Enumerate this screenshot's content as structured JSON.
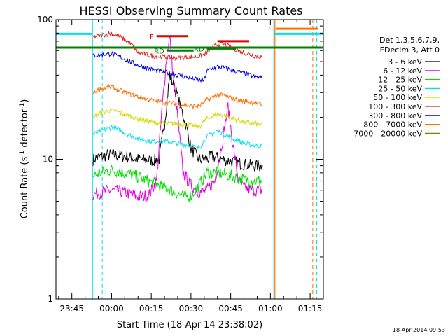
{
  "chart_data": {
    "type": "line",
    "title": "HESSI Observing Summary Count Rates",
    "xlabel": "Start Time (18-Apr-14 23:38:02)",
    "ylabel_main": "Count Rate (s",
    "ylabel_sup1": "-1",
    "ylabel_mid": " detector",
    "ylabel_sup2": "-1",
    "ylabel_end": ")",
    "yscale": "log",
    "ylim": [
      1,
      100
    ],
    "xlim_minutes": [
      -21,
      80
    ],
    "x_ticks": [
      {
        "m": -15,
        "label": "23:45"
      },
      {
        "m": 0,
        "label": "00:00"
      },
      {
        "m": 15,
        "label": "00:15"
      },
      {
        "m": 30,
        "label": "00:30"
      },
      {
        "m": 45,
        "label": "00:45"
      },
      {
        "m": 60,
        "label": "01:00"
      },
      {
        "m": 75,
        "label": "01:15"
      }
    ],
    "y_ticks": [
      {
        "v": 1,
        "label": "1"
      },
      {
        "v": 10,
        "label": "10"
      },
      {
        "v": 100,
        "label": "100"
      }
    ],
    "legend_header": [
      "Det 1,3,5,6,7,9,",
      "FDecim 3, Att 0"
    ],
    "series": [
      {
        "name": "3 - 6 keV",
        "color": "#000000",
        "x": [
          -7,
          -4,
          0,
          5,
          10,
          15,
          18,
          20,
          22,
          25,
          28,
          30,
          33,
          36,
          38,
          42,
          46,
          50,
          54,
          57
        ],
        "y": [
          10,
          10.5,
          10.8,
          10.5,
          10,
          9.8,
          10,
          18,
          40,
          28,
          18,
          12,
          10,
          10,
          10.5,
          10,
          9.6,
          9.2,
          9,
          9
        ]
      },
      {
        "name": "6 - 12 keV",
        "color": "#e000e0",
        "x": [
          -7,
          -4,
          0,
          5,
          10,
          14,
          17,
          19,
          21,
          22,
          23,
          25,
          27,
          30,
          33,
          36,
          39,
          42,
          44,
          46,
          48,
          50,
          54,
          57
        ],
        "y": [
          5.6,
          5.8,
          6,
          5.8,
          5.4,
          5.5,
          7,
          22,
          60,
          75,
          45,
          20,
          8,
          6.5,
          5.8,
          6,
          7,
          14,
          24,
          12,
          7,
          6.2,
          6,
          6
        ]
      },
      {
        "name": "12 - 25 keV",
        "color": "#00e000",
        "x": [
          -7,
          -4,
          0,
          5,
          10,
          15,
          18,
          21,
          24,
          27,
          30,
          33,
          36,
          40,
          43,
          46,
          50,
          54,
          57
        ],
        "y": [
          7.6,
          8,
          8.4,
          8,
          7.5,
          6.8,
          6.5,
          6.2,
          5.8,
          5.4,
          5.5,
          6.5,
          8,
          8,
          7.8,
          7.5,
          7.2,
          7,
          7
        ]
      },
      {
        "name": "25 - 50 keV",
        "color": "#00e0f0",
        "x": [
          -7,
          -4,
          0,
          5,
          10,
          15,
          20,
          25,
          30,
          33,
          36,
          40,
          43,
          46,
          50,
          54,
          57
        ],
        "y": [
          15,
          16,
          17,
          15.5,
          14,
          13.5,
          13.5,
          13,
          12.5,
          12,
          14.5,
          16,
          15,
          14,
          13,
          12.5,
          12.5
        ]
      },
      {
        "name": "50 - 100 keV",
        "color": "#d8d800",
        "x": [
          -7,
          -4,
          0,
          5,
          10,
          15,
          20,
          25,
          30,
          33,
          36,
          40,
          43,
          46,
          50,
          54,
          57
        ],
        "y": [
          20,
          21.5,
          22.5,
          21,
          19.5,
          18.5,
          18,
          18,
          17.5,
          17,
          19.5,
          21,
          20.5,
          19.5,
          18.5,
          18,
          17.5
        ]
      },
      {
        "name": "100 - 300 keV",
        "color": "#e02020",
        "x": [
          -7,
          -4,
          0,
          5,
          8,
          10,
          15,
          20,
          25,
          30,
          34,
          36,
          40,
          43,
          46,
          50,
          54,
          57
        ],
        "y": [
          75,
          77,
          80,
          72,
          65,
          58,
          55,
          54,
          53,
          54,
          55,
          58,
          67,
          66,
          62,
          58,
          55,
          54
        ]
      },
      {
        "name": "300 - 800 keV",
        "color": "#0000e0",
        "x": [
          -7,
          -4,
          0,
          5,
          10,
          15,
          20,
          25,
          30,
          33,
          35,
          36,
          40,
          43,
          46,
          50,
          54,
          57
        ],
        "y": [
          55,
          56,
          57,
          52,
          47,
          44,
          42,
          40,
          38,
          37,
          36.5,
          43,
          46,
          45,
          43,
          41,
          39,
          38
        ]
      },
      {
        "name": "800 - 7000 keV",
        "color": "#ff7000",
        "x": [
          -7,
          -4,
          0,
          5,
          10,
          15,
          20,
          25,
          30,
          33,
          36,
          40,
          43,
          46,
          50,
          54,
          57
        ],
        "y": [
          30,
          32,
          33,
          30,
          28,
          26.5,
          25.5,
          25,
          24,
          24,
          26.5,
          29,
          28.5,
          27,
          26,
          25.5,
          24.5
        ]
      },
      {
        "name": "7000 - 20000 keV",
        "color": "#808000",
        "x": [],
        "y": []
      }
    ],
    "flags": [
      {
        "label": "F",
        "color": "#e00000",
        "x0": 17,
        "x1": 29,
        "y": 76
      },
      {
        "label": "",
        "color": "#e00000",
        "x0": 40,
        "x1": 52,
        "y": 70
      },
      {
        "label": "RD",
        "color": "#008000",
        "x0": 21,
        "x1": 31,
        "y": 60
      },
      {
        "label": "RD",
        "color": "#008000",
        "x0": 36,
        "x1": 47,
        "y": 62
      },
      {
        "label": "S",
        "color": "#ff7000",
        "x0": 62,
        "x1": 78,
        "y": 86
      }
    ],
    "saa_level": 63,
    "saa_color": "#008000",
    "night_level": 79,
    "night_color": "#00e0f0",
    "orbit_lines": {
      "solid": [
        {
          "m": -7.2,
          "color": "#00e0f0"
        },
        {
          "m": 61.3,
          "color": "#00e0f0"
        },
        {
          "m": 61.7,
          "color": "#ff7000"
        }
      ],
      "dashed": [
        {
          "m": -3.5,
          "color": "#00e0f0"
        },
        {
          "m": 76,
          "color": "#ff7000"
        },
        {
          "m": 77.5,
          "color": "#00e0f0"
        }
      ]
    },
    "timestamp": "18-Apr-2014 09:53"
  }
}
